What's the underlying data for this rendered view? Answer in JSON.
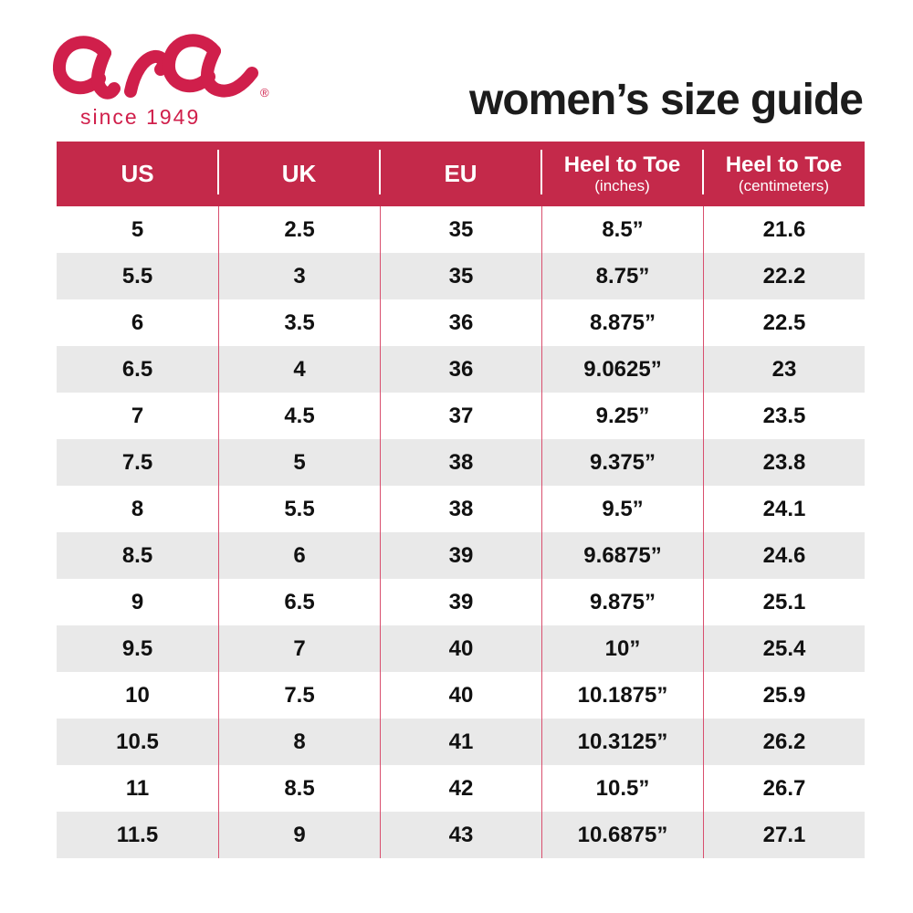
{
  "brand": {
    "logo_text": "ara",
    "registered_mark": "®",
    "tagline": "since 1949",
    "logo_color": "#D01F4B"
  },
  "page_title": "women’s size guide",
  "colors": {
    "header_bg": "#C4294A",
    "row_alt_bg": "#E9E9E9",
    "divider_red": "#D94F6E",
    "header_text": "#FFFFFF",
    "body_text": "#111111"
  },
  "table": {
    "columns": [
      {
        "label": "US",
        "sublabel": ""
      },
      {
        "label": "UK",
        "sublabel": ""
      },
      {
        "label": "EU",
        "sublabel": ""
      },
      {
        "label": "Heel to Toe",
        "sublabel": "(inches)"
      },
      {
        "label": "Heel to Toe",
        "sublabel": "(centimeters)"
      }
    ],
    "rows": [
      [
        "5",
        "2.5",
        "35",
        "8.5”",
        "21.6"
      ],
      [
        "5.5",
        "3",
        "35",
        "8.75”",
        "22.2"
      ],
      [
        "6",
        "3.5",
        "36",
        "8.875”",
        "22.5"
      ],
      [
        "6.5",
        "4",
        "36",
        "9.0625”",
        "23"
      ],
      [
        "7",
        "4.5",
        "37",
        "9.25”",
        "23.5"
      ],
      [
        "7.5",
        "5",
        "38",
        "9.375”",
        "23.8"
      ],
      [
        "8",
        "5.5",
        "38",
        "9.5”",
        "24.1"
      ],
      [
        "8.5",
        "6",
        "39",
        "9.6875”",
        "24.6"
      ],
      [
        "9",
        "6.5",
        "39",
        "9.875”",
        "25.1"
      ],
      [
        "9.5",
        "7",
        "40",
        "10”",
        "25.4"
      ],
      [
        "10",
        "7.5",
        "40",
        "10.1875”",
        "25.9"
      ],
      [
        "10.5",
        "8",
        "41",
        "10.3125”",
        "26.2"
      ],
      [
        "11",
        "8.5",
        "42",
        "10.5”",
        "26.7"
      ],
      [
        "11.5",
        "9",
        "43",
        "10.6875”",
        "27.1"
      ]
    ]
  }
}
